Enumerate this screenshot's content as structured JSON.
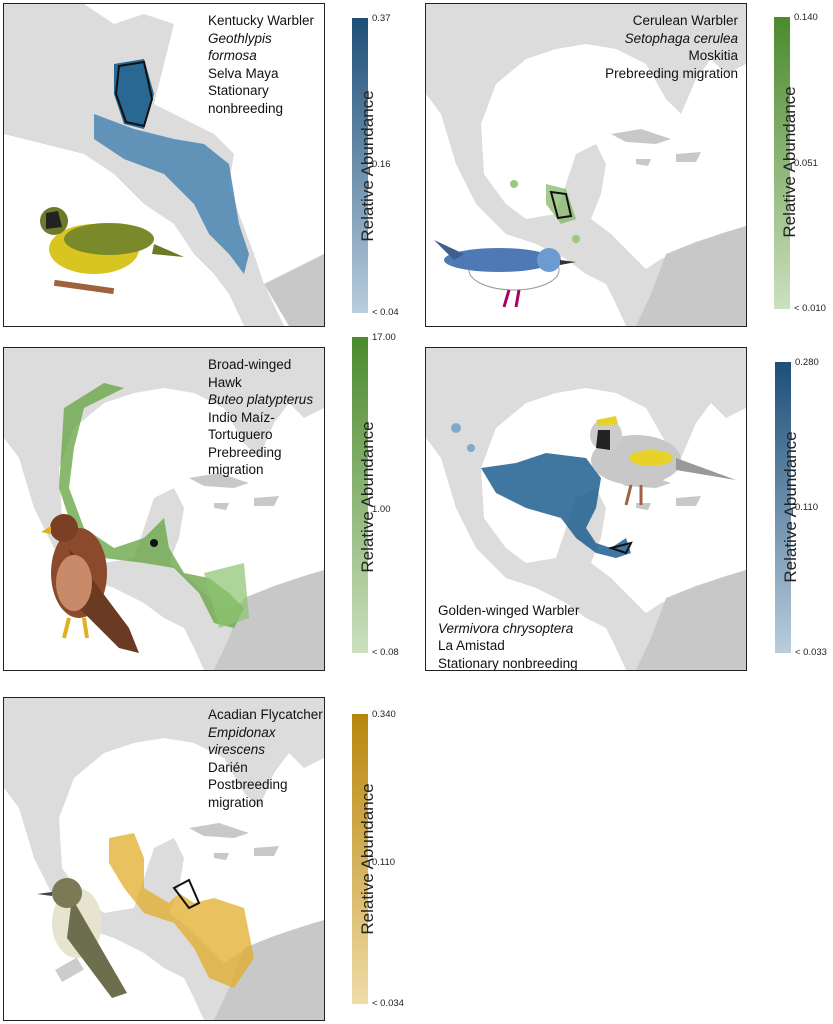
{
  "legend_title": "Relative Abundance",
  "panels": [
    {
      "common": "Kentucky Warbler",
      "scientific": "Geothlypis formosa",
      "site": "Selva Maya",
      "season": "Stationary nonbreeding",
      "legend": {
        "max": "0.37",
        "mid": "0.16",
        "min": "< 0.04"
      },
      "color_dark": "#1d4f78",
      "color_light": "#b9cddd"
    },
    {
      "common": "Cerulean Warbler",
      "scientific": "Setophaga cerulea",
      "site": "Moskitia",
      "season": "Prebreeding migration",
      "legend": {
        "max": "0.140",
        "mid": "0.051",
        "min": "< 0.010"
      },
      "color_dark": "#4b8a2d",
      "color_light": "#cde0bf"
    },
    {
      "common": "Broad-winged Hawk",
      "scientific": "Buteo platypterus",
      "site": "Indio Maíz-Tortuguero",
      "season": "Prebreeding migration",
      "legend": {
        "max": "17.00",
        "mid": "1.00",
        "min": "< 0.08"
      },
      "color_dark": "#4b8a2d",
      "color_light": "#cde0bf"
    },
    {
      "common": "Golden-winged Warbler",
      "scientific": "Vermivora chrysoptera",
      "site": "La Amistad",
      "season": "Stationary nonbreeding",
      "legend": {
        "max": "0.280",
        "mid": "0.110",
        "min": "< 0.033"
      },
      "color_dark": "#1d4f78",
      "color_light": "#b9cddd"
    },
    {
      "common": "Acadian Flycatcher",
      "scientific": "Empidonax virescens",
      "site": "Darién",
      "season": "Postbreeding migration",
      "legend": {
        "max": "0.340",
        "mid": "0.110",
        "min": "< 0.034"
      },
      "color_dark": "#b8860b",
      "color_light": "#efdca8"
    }
  ]
}
